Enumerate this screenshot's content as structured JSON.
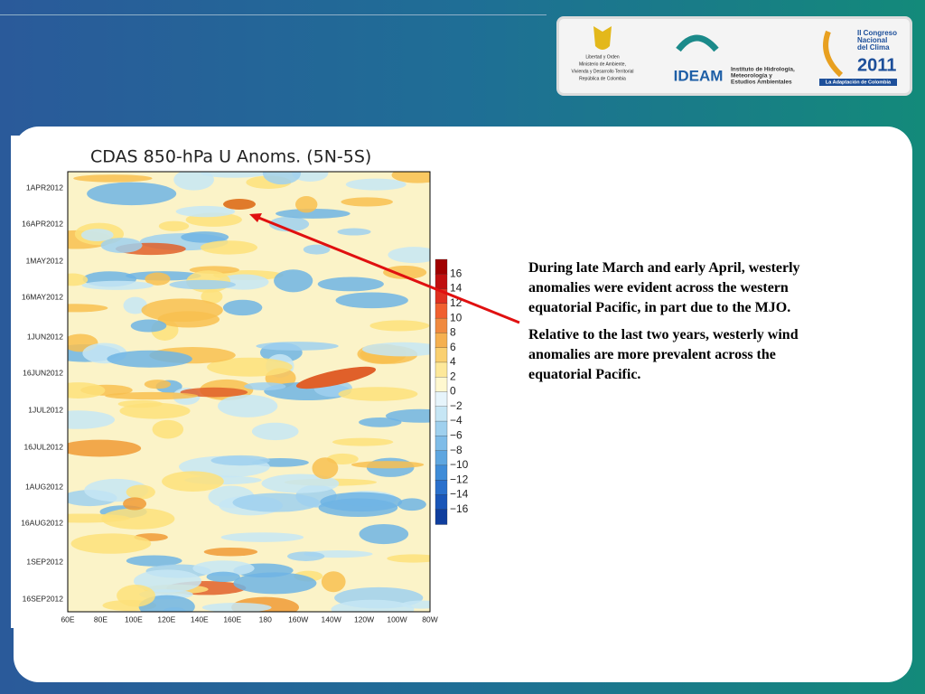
{
  "logos": {
    "ministry_lines": [
      "Libertad y Orden",
      "Ministerio de Ambiente,",
      "Vivienda y Desarrollo Territorial",
      "República de Colombia"
    ],
    "ideam": "IDEAM",
    "ideam_lines": [
      "Instituto de Hidrología,",
      "Meteorología y",
      "Estudios Ambientales"
    ],
    "congress_lines": [
      "II Congreso",
      "Nacional",
      "del Clima",
      "2011"
    ],
    "congress_tagline": "La Adaptación de Colombia"
  },
  "figure": {
    "title": "CDAS 850-hPa U Anoms. (5N-5S)",
    "y_labels": [
      "1APR2012",
      "16APR2012",
      "1MAY2012",
      "16MAY2012",
      "1JUN2012",
      "16JUN2012",
      "1JUL2012",
      "16JUL2012",
      "1AUG2012",
      "16AUG2012",
      "1SEP2012",
      "16SEP2012"
    ],
    "x_labels": [
      "60E",
      "80E",
      "100E",
      "120E",
      "140E",
      "160E",
      "180",
      "160W",
      "140W",
      "120W",
      "100W",
      "80W"
    ],
    "colorbar_labels": [
      "16",
      "14",
      "12",
      "10",
      "8",
      "6",
      "4",
      "2",
      "0",
      "−2",
      "−4",
      "−6",
      "−8",
      "−10",
      "−12",
      "−14",
      "−16"
    ]
  },
  "text": {
    "paragraphs": [
      "During late March and early April, westerly anomalies were evident across the western equatorial Pacific, in part due to the MJO.",
      "Relative to the last two years, westerly wind anomalies are more prevalent across the equatorial Pacific."
    ]
  }
}
